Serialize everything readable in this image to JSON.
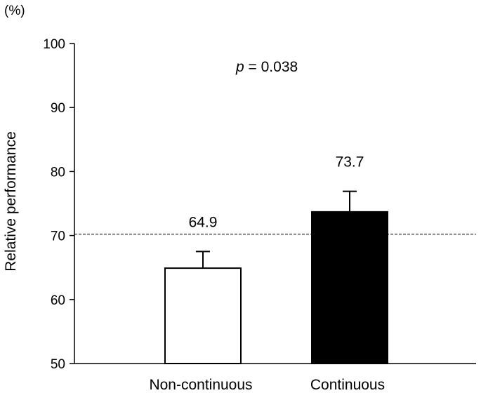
{
  "chart_data": {
    "type": "bar",
    "categories": [
      "Non-continuous",
      "Continuous"
    ],
    "values": [
      64.9,
      73.7
    ],
    "value_labels": [
      "64.9",
      "73.7"
    ],
    "error_upper": [
      67.5,
      76.9
    ],
    "bar_colors": [
      "#ffffff",
      "#000000"
    ],
    "bar_edge_color": "#000000",
    "ylabel": "Relative performance",
    "unit_label": "(%)",
    "ylim": [
      50,
      100
    ],
    "yticks": [
      50,
      60,
      70,
      80,
      90,
      100
    ],
    "reference_line": 70.2,
    "annotation": {
      "p_symbol": "p",
      "p_text": " = 0.038"
    },
    "grid": false
  }
}
